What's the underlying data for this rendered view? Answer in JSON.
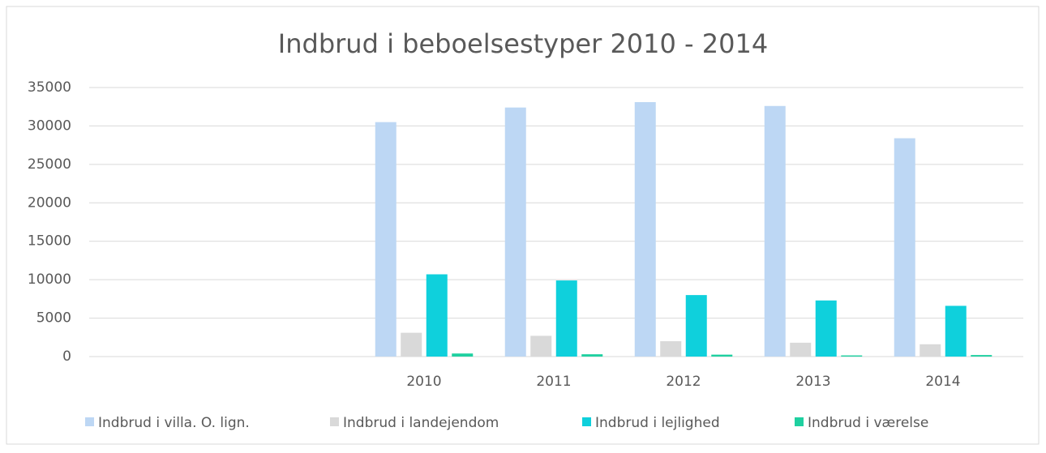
{
  "chart_data": {
    "type": "bar",
    "title": "Indbrud i beboelsestyper 2010 - 2014",
    "categories": [
      null,
      null,
      "2010",
      "2011",
      "2012",
      "2013",
      "2014"
    ],
    "series": [
      {
        "name": "Indbrud i villa. O. lign.",
        "color": "#bdd7f4",
        "values": [
          null,
          null,
          30500,
          32400,
          33100,
          32600,
          28400
        ]
      },
      {
        "name": "Indbrud i landejendom",
        "color": "#d9d9d9",
        "values": [
          null,
          null,
          3100,
          2700,
          2000,
          1800,
          1600
        ]
      },
      {
        "name": "Indbrud i lejlighed",
        "color": "#0fd0dc",
        "values": [
          null,
          null,
          10700,
          9900,
          8000,
          7300,
          6600
        ]
      },
      {
        "name": "Indbrud i værelse",
        "color": "#1fd0a0",
        "values": [
          null,
          null,
          400,
          300,
          250,
          150,
          200
        ]
      }
    ],
    "ylim": [
      0,
      35000
    ],
    "yticks": [
      0,
      5000,
      10000,
      15000,
      20000,
      25000,
      30000,
      35000
    ],
    "grid": true,
    "legend": "bottom"
  }
}
